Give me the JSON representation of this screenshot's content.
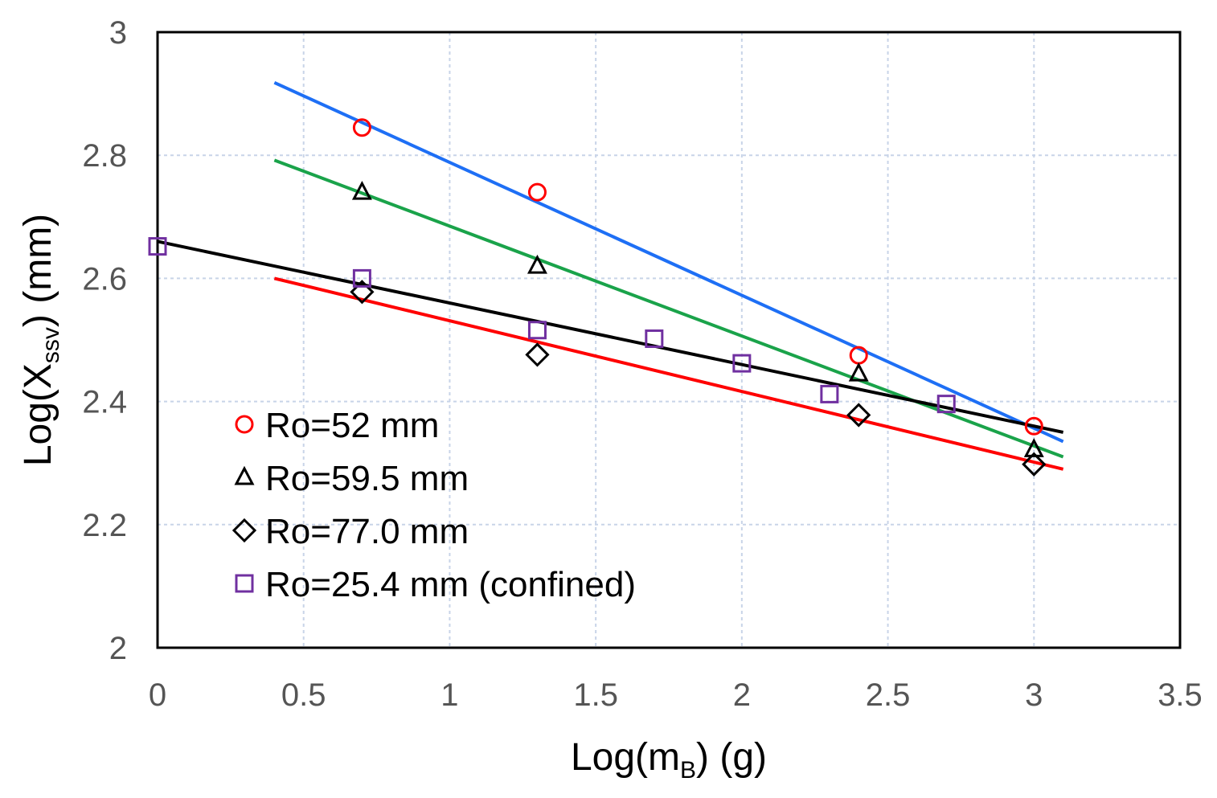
{
  "chart_data": {
    "type": "scatter",
    "title": "",
    "xlabel": {
      "base": "Log(m",
      "sub": "B",
      "tail": ") (g)"
    },
    "ylabel": {
      "base": "Log(X",
      "sub": "ssv",
      "tail": ")   (mm)"
    },
    "xlim": [
      0,
      3.5
    ],
    "ylim": [
      2,
      3
    ],
    "x_ticks": [
      0,
      0.5,
      1,
      1.5,
      2,
      2.5,
      3,
      3.5
    ],
    "x_tick_labels": [
      "0",
      "0.5",
      "1",
      "1.5",
      "2",
      "2.5",
      "3",
      "3.5"
    ],
    "y_ticks": [
      2,
      2.2,
      2.4,
      2.6,
      2.8,
      3
    ],
    "y_tick_labels": [
      "2",
      "2.2",
      "2.4",
      "2.6",
      "2.8",
      "3"
    ],
    "grid": true,
    "legend_position": "bottom-left",
    "series": [
      {
        "name": "Ro=52 mm",
        "marker": "circle",
        "color": "#ff0000",
        "points": [
          [
            0.7,
            2.845
          ],
          [
            1.3,
            2.74
          ],
          [
            2.4,
            2.475
          ],
          [
            3.0,
            2.36
          ]
        ]
      },
      {
        "name": "Ro=59.5 mm",
        "marker": "triangle",
        "color": "#000000",
        "points": [
          [
            0.7,
            2.74
          ],
          [
            1.3,
            2.62
          ],
          [
            2.4,
            2.445
          ],
          [
            3.0,
            2.322
          ]
        ]
      },
      {
        "name": "Ro=77.0 mm",
        "marker": "diamond",
        "color": "#000000",
        "points": [
          [
            0.7,
            2.578
          ],
          [
            1.3,
            2.476
          ],
          [
            2.4,
            2.378
          ],
          [
            3.0,
            2.298
          ]
        ]
      },
      {
        "name": "Ro=25.4 mm (confined)",
        "marker": "square",
        "color": "#7030a0",
        "points": [
          [
            0.0,
            2.652
          ],
          [
            0.7,
            2.6
          ],
          [
            1.3,
            2.516
          ],
          [
            1.7,
            2.502
          ],
          [
            2.0,
            2.462
          ],
          [
            2.3,
            2.412
          ],
          [
            2.7,
            2.396
          ]
        ]
      }
    ],
    "fit_lines": [
      {
        "name": "fit-ro-52",
        "color": "#1e6ff5",
        "x": [
          0.4,
          3.1
        ],
        "y": [
          2.918,
          2.335
        ]
      },
      {
        "name": "fit-ro-59.5",
        "color": "#1aa34a",
        "x": [
          0.4,
          3.1
        ],
        "y": [
          2.792,
          2.31
        ]
      },
      {
        "name": "fit-confined",
        "color": "#000000",
        "x": [
          0.0,
          3.1
        ],
        "y": [
          2.66,
          2.35
        ]
      },
      {
        "name": "fit-ro-77.0",
        "color": "#ff0000",
        "x": [
          0.4,
          3.1
        ],
        "y": [
          2.6,
          2.29
        ]
      }
    ]
  }
}
